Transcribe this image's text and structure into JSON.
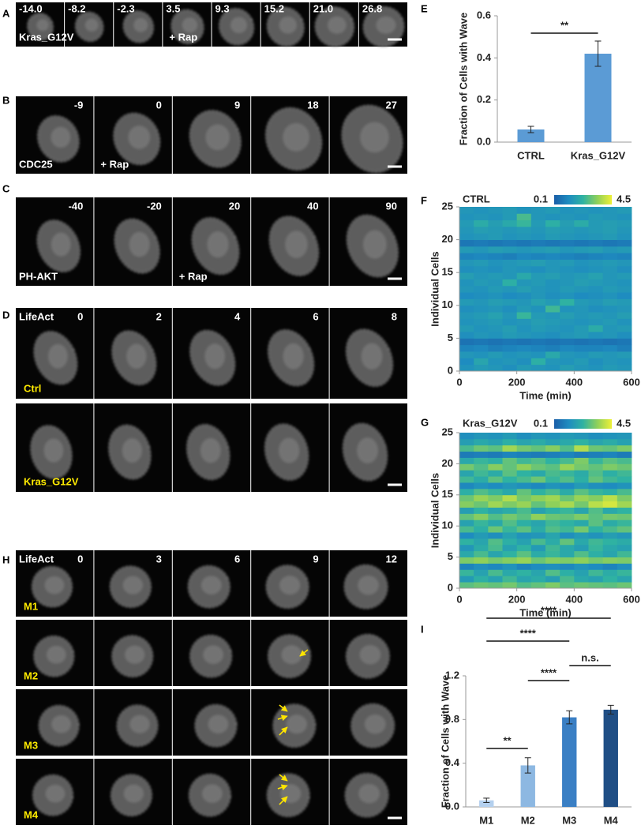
{
  "figure_panels": [
    {
      "letter": "A",
      "frames": [
        "-14.0",
        "-8.2",
        "-2.3",
        "3.5",
        "9.3",
        "15.2",
        "21.0",
        "26.8"
      ],
      "marker": "Kras_G12V",
      "treatment": "+ Rap"
    },
    {
      "letter": "B",
      "frames": [
        "-9",
        "0",
        "9",
        "18",
        "27"
      ],
      "marker": "CDC25",
      "treatment": "+ Rap"
    },
    {
      "letter": "C",
      "frames": [
        "-40",
        "-20",
        "20",
        "40",
        "90"
      ],
      "marker": "PH-AKT",
      "treatment": "+ Rap"
    },
    {
      "letter": "D",
      "marker": "LifeAct",
      "frames": [
        "0",
        "2",
        "4",
        "6",
        "8"
      ],
      "rows": [
        "Ctrl",
        "Kras_G12V"
      ]
    },
    {
      "letter": "H",
      "marker": "LifeAct",
      "frames": [
        "0",
        "3",
        "6",
        "9",
        "12"
      ],
      "rows": [
        "M1",
        "M2",
        "M3",
        "M4"
      ]
    }
  ],
  "chart_data": [
    {
      "type": "bar",
      "letter": "E",
      "ylabel": "Fraction of Cells with Wave",
      "categories": [
        "CTRL",
        "Kras_G12V"
      ],
      "values": [
        0.06,
        0.42
      ],
      "errors": [
        0.015,
        0.06
      ],
      "colors": [
        "#5b9bd5",
        "#5b9bd5"
      ],
      "ylim": [
        0,
        0.6
      ],
      "yticks": [
        {
          "value": 0,
          "label": "0.0"
        },
        0.2,
        0.4,
        0.6
      ],
      "significance": [
        {
          "pair": [
            0,
            1
          ],
          "label": "**"
        }
      ]
    },
    {
      "type": "heatmap",
      "letter": "F",
      "title": "CTRL",
      "xlabel": "Time (min)",
      "ylabel": "Individual Cells",
      "xlim": [
        0,
        600
      ],
      "xticks": [
        0,
        200,
        400,
        600
      ],
      "ylim": [
        0,
        25
      ],
      "yticks": [
        0,
        5,
        10,
        15,
        20,
        25
      ],
      "zlim": [
        0.1,
        4.5
      ],
      "colormap": [
        "#1a5ea8",
        "#1e8cc0",
        "#2fb2a2",
        "#8fd05a",
        "#eef038"
      ],
      "xbins": [
        0,
        50,
        100,
        150,
        200,
        250,
        300,
        350,
        400,
        450,
        500,
        550,
        600
      ],
      "ybins": [
        0,
        1,
        2,
        3,
        4,
        5,
        6,
        7,
        8,
        9,
        10,
        11,
        12,
        13,
        14,
        15,
        16,
        17,
        18,
        19,
        20,
        21,
        22,
        23,
        24,
        25
      ],
      "z": [
        [
          1.4,
          1.6,
          1.5,
          1.3,
          1.6,
          1.5,
          1.4,
          1.7,
          1.5,
          1.4,
          1.6,
          1.5
        ],
        [
          1.2,
          1.9,
          1.4,
          1.5,
          1.3,
          2.2,
          1.5,
          1.4,
          1.6,
          1.3,
          1.5,
          1.4
        ],
        [
          1.5,
          1.4,
          1.6,
          1.4,
          1.5,
          1.4,
          2.0,
          1.5,
          1.4,
          1.6,
          1.5,
          1.6
        ],
        [
          1.0,
          1.1,
          0.9,
          1.0,
          1.1,
          1.0,
          0.9,
          1.1,
          1.0,
          1.0,
          1.1,
          0.9
        ],
        [
          0.6,
          0.7,
          0.6,
          0.7,
          0.6,
          0.7,
          0.6,
          0.7,
          0.6,
          0.7,
          0.6,
          0.7
        ],
        [
          1.3,
          1.5,
          1.4,
          1.6,
          1.5,
          1.4,
          1.3,
          1.5,
          1.6,
          1.4,
          1.5,
          1.3
        ],
        [
          1.6,
          1.4,
          1.5,
          1.7,
          1.4,
          1.6,
          1.5,
          1.4,
          1.6,
          2.1,
          1.5,
          1.6
        ],
        [
          1.4,
          1.5,
          1.6,
          1.4,
          1.5,
          1.7,
          1.6,
          1.5,
          1.4,
          1.5,
          1.6,
          1.4
        ],
        [
          1.5,
          1.6,
          1.8,
          1.5,
          2.4,
          1.6,
          1.5,
          1.7,
          1.5,
          1.6,
          1.5,
          1.7
        ],
        [
          1.3,
          1.4,
          1.5,
          1.3,
          1.6,
          1.4,
          2.5,
          1.4,
          1.5,
          1.3,
          1.4,
          1.5
        ],
        [
          1.6,
          1.5,
          1.7,
          1.6,
          1.5,
          1.8,
          1.6,
          2.3,
          1.6,
          1.5,
          1.7,
          1.6
        ],
        [
          1.2,
          1.3,
          1.4,
          1.2,
          1.3,
          1.5,
          1.3,
          1.4,
          1.2,
          1.3,
          1.4,
          1.2
        ],
        [
          1.5,
          1.4,
          1.6,
          1.5,
          1.7,
          1.5,
          1.4,
          1.6,
          1.5,
          1.4,
          1.6,
          1.5
        ],
        [
          1.4,
          1.6,
          1.5,
          2.2,
          1.5,
          1.6,
          1.4,
          1.5,
          1.7,
          1.6,
          1.5,
          1.4
        ],
        [
          1.7,
          1.5,
          1.6,
          1.5,
          2.0,
          1.6,
          1.7,
          1.5,
          1.6,
          1.8,
          1.5,
          1.6
        ],
        [
          1.3,
          1.4,
          1.3,
          1.5,
          1.4,
          1.3,
          1.5,
          1.4,
          1.3,
          1.4,
          1.5,
          1.3
        ],
        [
          1.5,
          1.6,
          1.4,
          1.5,
          1.6,
          1.7,
          1.5,
          1.6,
          1.4,
          1.5,
          1.6,
          1.5
        ],
        [
          1.0,
          1.1,
          1.0,
          0.9,
          1.1,
          1.0,
          1.1,
          1.0,
          0.9,
          1.0,
          1.1,
          1.0
        ],
        [
          1.6,
          1.5,
          1.7,
          1.6,
          1.5,
          1.6,
          1.7,
          1.5,
          1.6,
          1.7,
          1.5,
          1.6
        ],
        [
          0.7,
          0.8,
          0.7,
          0.8,
          0.7,
          0.8,
          0.7,
          0.8,
          0.7,
          0.8,
          0.7,
          0.8
        ],
        [
          1.4,
          1.5,
          1.6,
          1.4,
          1.5,
          1.4,
          1.6,
          1.5,
          1.4,
          1.5,
          1.6,
          1.4
        ],
        [
          1.5,
          1.7,
          1.6,
          1.5,
          1.6,
          1.5,
          1.7,
          1.6,
          1.5,
          1.6,
          1.7,
          1.5
        ],
        [
          1.6,
          2.1,
          1.7,
          2.0,
          2.4,
          1.6,
          2.2,
          1.7,
          2.1,
          1.6,
          1.7,
          1.6
        ],
        [
          1.4,
          1.5,
          1.4,
          1.6,
          2.6,
          1.5,
          1.4,
          1.5,
          1.4,
          1.6,
          1.5,
          1.4
        ],
        [
          1.5,
          1.4,
          1.5,
          1.6,
          1.4,
          1.5,
          1.6,
          1.4,
          1.5,
          1.4,
          1.5,
          1.6
        ]
      ]
    },
    {
      "type": "heatmap",
      "letter": "G",
      "title": "Kras_G12V",
      "xlabel": "Time (min)",
      "ylabel": "Individual Cells",
      "xlim": [
        0,
        600
      ],
      "xticks": [
        0,
        200,
        400,
        600
      ],
      "ylim": [
        0,
        25
      ],
      "yticks": [
        0,
        5,
        10,
        15,
        20,
        25
      ],
      "zlim": [
        0.1,
        4.5
      ],
      "colormap": [
        "#1a5ea8",
        "#1e8cc0",
        "#2fb2a2",
        "#8fd05a",
        "#eef038"
      ],
      "xbins": [
        0,
        50,
        100,
        150,
        200,
        250,
        300,
        350,
        400,
        450,
        500,
        550,
        600
      ],
      "ybins": [
        0,
        1,
        2,
        3,
        4,
        5,
        6,
        7,
        8,
        9,
        10,
        11,
        12,
        13,
        14,
        15,
        16,
        17,
        18,
        19,
        20,
        21,
        22,
        23,
        24,
        25
      ],
      "z": [
        [
          2.8,
          3.0,
          2.9,
          3.1,
          2.7,
          2.9,
          3.2,
          2.8,
          3.0,
          2.9,
          2.8,
          3.0
        ],
        [
          1.6,
          2.2,
          1.8,
          2.5,
          1.9,
          2.1,
          1.7,
          2.6,
          2.0,
          1.8,
          2.3,
          1.9
        ],
        [
          2.4,
          1.8,
          2.6,
          2.0,
          2.3,
          1.9,
          2.7,
          2.2,
          1.8,
          2.5,
          2.1,
          2.4
        ],
        [
          1.0,
          1.3,
          1.1,
          1.4,
          1.0,
          1.2,
          1.3,
          1.1,
          1.4,
          1.2,
          1.0,
          1.3
        ],
        [
          3.2,
          3.4,
          3.1,
          3.3,
          3.5,
          3.0,
          3.3,
          3.2,
          3.4,
          3.1,
          3.3,
          3.2
        ],
        [
          2.0,
          2.6,
          1.9,
          2.3,
          2.8,
          2.1,
          2.4,
          2.0,
          2.7,
          2.2,
          1.9,
          2.5
        ],
        [
          1.5,
          2.1,
          2.6,
          1.8,
          2.3,
          1.6,
          2.5,
          2.0,
          1.7,
          2.4,
          2.0,
          1.8
        ],
        [
          2.3,
          1.9,
          2.7,
          2.2,
          1.8,
          2.6,
          2.1,
          2.9,
          2.0,
          2.5,
          2.3,
          2.1
        ],
        [
          1.2,
          1.6,
          1.3,
          1.8,
          1.4,
          1.5,
          1.9,
          1.3,
          1.6,
          1.4,
          1.7,
          1.5
        ],
        [
          2.6,
          2.2,
          3.0,
          2.4,
          2.8,
          2.1,
          2.7,
          2.5,
          3.1,
          2.3,
          2.6,
          2.9
        ],
        [
          1.8,
          2.4,
          2.0,
          2.7,
          2.2,
          1.9,
          2.5,
          2.3,
          2.0,
          2.8,
          2.1,
          2.4
        ],
        [
          2.9,
          3.3,
          2.7,
          3.1,
          2.8,
          3.4,
          3.0,
          2.9,
          3.2,
          2.8,
          3.1,
          3.0
        ],
        [
          1.7,
          2.3,
          1.9,
          2.1,
          2.6,
          1.8,
          2.2,
          2.4,
          1.9,
          2.7,
          2.0,
          2.3
        ],
        [
          3.3,
          3.0,
          3.6,
          3.2,
          3.5,
          2.9,
          3.4,
          3.7,
          3.1,
          3.9,
          4.2,
          3.6
        ],
        [
          3.0,
          3.5,
          3.2,
          3.8,
          3.1,
          3.4,
          3.6,
          3.0,
          3.5,
          3.3,
          3.9,
          3.2
        ],
        [
          2.2,
          2.7,
          2.4,
          2.0,
          2.9,
          2.3,
          2.6,
          2.1,
          2.8,
          2.4,
          2.2,
          2.6
        ],
        [
          1.1,
          1.4,
          1.2,
          1.5,
          1.3,
          1.1,
          1.4,
          1.2,
          1.6,
          1.3,
          1.2,
          1.4
        ],
        [
          2.5,
          2.1,
          2.8,
          2.3,
          2.6,
          3.0,
          2.4,
          2.7,
          2.2,
          2.9,
          2.5,
          2.3
        ],
        [
          1.9,
          2.5,
          2.1,
          2.8,
          2.3,
          2.0,
          2.6,
          2.4,
          2.1,
          2.7,
          2.2,
          2.5
        ],
        [
          3.1,
          2.7,
          3.3,
          2.9,
          3.4,
          3.0,
          2.8,
          3.5,
          3.1,
          2.9,
          3.2,
          3.0
        ],
        [
          2.0,
          2.4,
          2.2,
          2.9,
          2.5,
          2.7,
          2.3,
          2.6,
          3.2,
          2.4,
          2.8,
          2.6
        ],
        [
          0.8,
          0.9,
          0.8,
          1.0,
          0.9,
          0.8,
          0.9,
          1.0,
          0.8,
          0.9,
          1.0,
          0.8
        ],
        [
          2.6,
          3.0,
          2.8,
          3.6,
          3.1,
          2.9,
          3.3,
          2.7,
          3.8,
          3.0,
          2.9,
          3.2
        ],
        [
          1.7,
          2.0,
          1.8,
          2.2,
          1.9,
          2.1,
          1.8,
          2.0,
          2.3,
          1.9,
          2.1,
          1.8
        ],
        [
          1.3,
          1.5,
          1.4,
          1.6,
          1.3,
          1.5,
          1.4,
          1.6,
          1.5,
          1.3,
          1.4,
          1.5
        ]
      ]
    },
    {
      "type": "bar",
      "letter": "I",
      "ylabel": "Fraction of Cells with Wave",
      "categories": [
        "M1",
        "M2",
        "M3",
        "M4"
      ],
      "values": [
        0.06,
        0.38,
        0.82,
        0.89
      ],
      "errors": [
        0.02,
        0.07,
        0.06,
        0.04
      ],
      "colors": [
        "#b4d0ee",
        "#8db8e2",
        "#3a7fc4",
        "#1f4e85"
      ],
      "ylim": [
        0,
        1.2
      ],
      "yticks": [
        {
          "value": 0,
          "label": "0.0"
        },
        0.4,
        0.8,
        1.2
      ],
      "significance": [
        {
          "pair": [
            0,
            3
          ],
          "label": "****"
        },
        {
          "pair": [
            0,
            2
          ],
          "label": "****"
        },
        {
          "pair": [
            2,
            3
          ],
          "label": "n.s."
        },
        {
          "pair": [
            1,
            2
          ],
          "label": "****"
        },
        {
          "pair": [
            0,
            1
          ],
          "label": "**"
        }
      ]
    }
  ]
}
